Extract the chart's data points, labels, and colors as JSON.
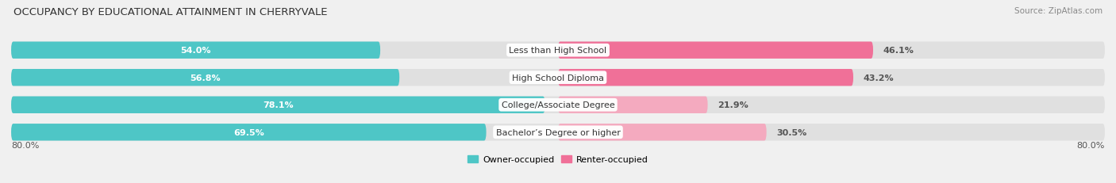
{
  "title": "OCCUPANCY BY EDUCATIONAL ATTAINMENT IN CHERRYVALE",
  "source": "Source: ZipAtlas.com",
  "categories": [
    "Less than High School",
    "High School Diploma",
    "College/Associate Degree",
    "Bachelor’s Degree or higher"
  ],
  "owner_pct": [
    54.0,
    56.8,
    78.1,
    69.5
  ],
  "renter_pct": [
    46.1,
    43.2,
    21.9,
    30.5
  ],
  "owner_color": "#4EC6C6",
  "renter_colors": [
    "#F07098",
    "#F07098",
    "#F4AABF",
    "#F4AABF"
  ],
  "axis_left_label": "80.0%",
  "axis_right_label": "80.0%",
  "legend_owner": "Owner-occupied",
  "legend_renter": "Renter-occupied",
  "bg_color": "#F0F0F0",
  "bar_bg_color": "#E0E0E0",
  "title_fontsize": 9.5,
  "source_fontsize": 7.5,
  "bar_label_fontsize": 8,
  "category_fontsize": 8,
  "legend_fontsize": 8,
  "axis_label_fontsize": 8,
  "max_pct": 80.0,
  "bar_height": 0.62
}
